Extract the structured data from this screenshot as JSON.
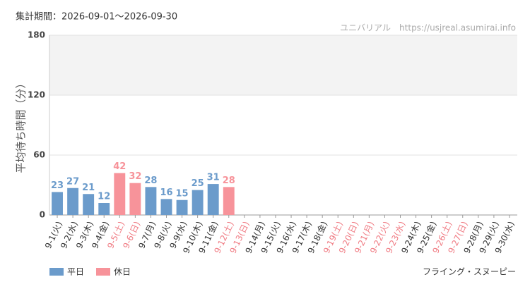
{
  "chart_data": {
    "type": "bar",
    "title": "集計期間：2026-09-01～2026-09-30",
    "source": "ユニバリアル　https://usjreal.asumirai.info",
    "ylabel": "平均待ち時間（分）",
    "attraction": "フライング・スヌーピー",
    "categories": [
      "9-1(火)",
      "9-2(水)",
      "9-3(木)",
      "9-4(金)",
      "9-5(土)",
      "9-6(日)",
      "9-7(月)",
      "9-8(火)",
      "9-9(水)",
      "9-10(木)",
      "9-11(金)",
      "9-12(土)",
      "9-13(日)",
      "9-14(月)",
      "9-15(火)",
      "9-16(水)",
      "9-17(木)",
      "9-18(金)",
      "9-19(土)",
      "9-20(日)",
      "9-21(月)",
      "9-22(火)",
      "9-23(水)",
      "9-24(木)",
      "9-25(金)",
      "9-26(土)",
      "9-27(日)",
      "9-28(月)",
      "9-29(火)",
      "9-30(水)"
    ],
    "category_colors": [
      "#333",
      "#333",
      "#333",
      "#333",
      "#f07c84",
      "#f07c84",
      "#333",
      "#333",
      "#333",
      "#333",
      "#333",
      "#f07c84",
      "#f07c84",
      "#333",
      "#333",
      "#333",
      "#333",
      "#333",
      "#f07c84",
      "#f07c84",
      "#f07c84",
      "#f07c84",
      "#f07c84",
      "#333",
      "#333",
      "#f07c84",
      "#f07c84",
      "#333",
      "#333",
      "#333"
    ],
    "series": [
      {
        "name": "平日",
        "color": "#6b9bcb",
        "values": [
          23,
          27,
          21,
          12,
          null,
          null,
          28,
          16,
          15,
          25,
          31,
          null,
          null,
          null,
          null,
          null,
          null,
          null,
          null,
          null,
          null,
          null,
          null,
          null,
          null,
          null,
          null,
          null,
          null,
          null
        ]
      },
      {
        "name": "休日",
        "color": "#f7939a",
        "values": [
          null,
          null,
          null,
          null,
          42,
          32,
          null,
          null,
          null,
          null,
          null,
          28,
          null,
          null,
          null,
          null,
          null,
          null,
          null,
          null,
          null,
          null,
          null,
          null,
          null,
          null,
          null,
          null,
          null,
          null
        ]
      }
    ],
    "ylim": [
      0,
      180
    ],
    "yticks": [
      0,
      60,
      120,
      180
    ],
    "grid": true
  }
}
